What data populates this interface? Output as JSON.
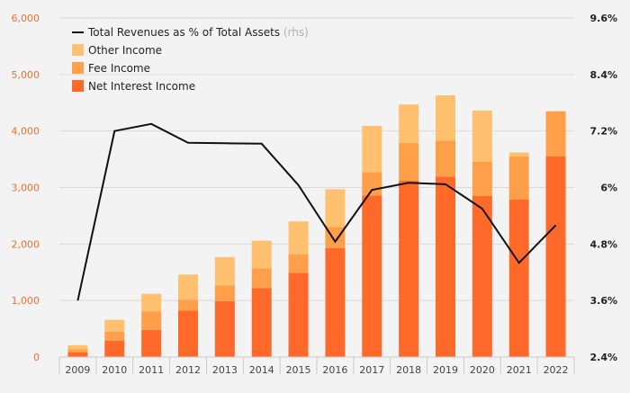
{
  "chart_data": {
    "type": "bar",
    "title": "",
    "xlabel": "",
    "ylabel": "",
    "categories": [
      "2009",
      "2010",
      "2011",
      "2012",
      "2013",
      "2014",
      "2015",
      "2016",
      "2017",
      "2018",
      "2019",
      "2020",
      "2021",
      "2022"
    ],
    "series": [
      {
        "name": "Net Interest Income",
        "color": "#ff6a2b",
        "axis": "left",
        "kind": "bar-stack",
        "values": [
          80,
          290,
          480,
          820,
          990,
          1220,
          1490,
          1930,
          2860,
          3120,
          3190,
          2850,
          2790,
          3550
        ]
      },
      {
        "name": "Fee Income",
        "color": "#ff9f4a",
        "axis": "left",
        "kind": "bar-stack",
        "values": [
          60,
          160,
          330,
          190,
          280,
          350,
          330,
          370,
          410,
          670,
          640,
          610,
          760,
          800
        ]
      },
      {
        "name": "Other Income",
        "color": "#ffc070",
        "axis": "left",
        "kind": "bar-stack",
        "values": [
          70,
          210,
          310,
          450,
          500,
          490,
          580,
          670,
          820,
          680,
          800,
          900,
          70,
          0
        ]
      },
      {
        "name": "Total Revenues as % of Total Assets",
        "suffix": " (rhs)",
        "color": "#111111",
        "axis": "right",
        "kind": "line",
        "values": [
          3.6,
          7.2,
          7.35,
          6.95,
          6.94,
          6.93,
          6.05,
          4.85,
          5.95,
          6.1,
          6.07,
          5.55,
          4.4,
          5.2
        ]
      }
    ],
    "y_left": {
      "min": 0,
      "max": 6000,
      "ticks": [
        "0",
        "1,000",
        "2,000",
        "3,000",
        "4,000",
        "5,000",
        "6,000"
      ]
    },
    "y_right": {
      "min": 2.4,
      "max": 9.6,
      "ticks": [
        "2.4%",
        "3.6%",
        "4.8%",
        "6%",
        "7.2%",
        "8.4%",
        "9.6%"
      ]
    },
    "legend_position": "top-left",
    "grid": true
  },
  "colors": {
    "left_axis_labels": "#f07030",
    "right_axis_labels": "#222222",
    "grid": "#d9d9d9",
    "axis_line": "#c8c8c8",
    "x_labels": "#444444",
    "rhs_note": "#b0b0b0",
    "background": "#f3f3f3"
  }
}
